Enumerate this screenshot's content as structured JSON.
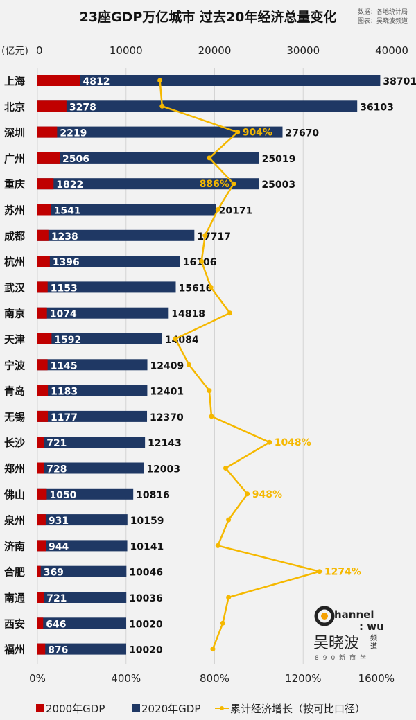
{
  "chart_data": {
    "type": "bar",
    "title": "23座GDP万亿城市 过去20年经济总量变化",
    "source": [
      "数据：各地统计局",
      "图表：吴晓波频道"
    ],
    "unit_label": "(亿元)",
    "x_top": {
      "range": [
        0,
        40000
      ],
      "ticks": [
        "0",
        "10000",
        "20000",
        "30000",
        "40000"
      ]
    },
    "x_bottom": {
      "range": [
        0,
        1600
      ],
      "ticks": [
        "0%",
        "400%",
        "800%",
        "1200%",
        "1600%"
      ]
    },
    "categories": [
      "上海",
      "北京",
      "深圳",
      "广州",
      "重庆",
      "苏州",
      "成都",
      "杭州",
      "武汉",
      "南京",
      "天津",
      "宁波",
      "青岛",
      "无锡",
      "长沙",
      "郑州",
      "佛山",
      "泉州",
      "济南",
      "合肥",
      "南通",
      "西安",
      "福州"
    ],
    "series": [
      {
        "name": "2000年GDP",
        "type": "bar",
        "color": "#c00000",
        "values": [
          4812,
          3278,
          2219,
          2506,
          1822,
          1541,
          1238,
          1396,
          1153,
          1074,
          1592,
          1145,
          1183,
          1177,
          721,
          728,
          1050,
          931,
          944,
          369,
          721,
          646,
          876
        ]
      },
      {
        "name": "2020年GDP",
        "type": "bar",
        "color": "#1f3864",
        "values": [
          38701,
          36103,
          27670,
          25019,
          25003,
          20171,
          17717,
          16106,
          15616,
          14818,
          14084,
          12409,
          12401,
          12370,
          12143,
          12003,
          10816,
          10159,
          10141,
          10046,
          10036,
          10020,
          10020
        ]
      },
      {
        "name": "累计经济增长（按可比口径）",
        "type": "line",
        "color": "#f5b800",
        "values": [
          553,
          563,
          904,
          776,
          886,
          815,
          757,
          741,
          783,
          869,
          623,
          684,
          776,
          786,
          1048,
          850,
          948,
          863,
          815,
          1274,
          863,
          837,
          792
        ],
        "labeled": {
          "2": "904%",
          "4": "886%",
          "14": "1048%",
          "16": "948%",
          "19": "1274%"
        }
      }
    ],
    "grid": "vertical",
    "legend": "bottom"
  },
  "logo": {
    "text": "Channel:WU 吴晓波频道 890新商学"
  }
}
